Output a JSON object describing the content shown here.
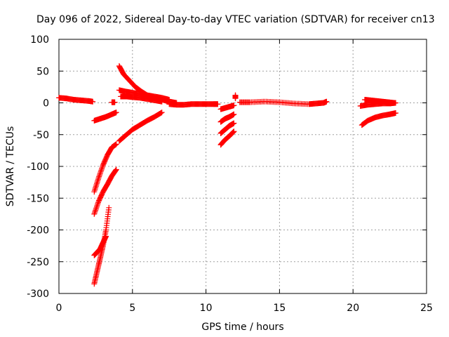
{
  "chart_data": {
    "type": "scatter",
    "title": "Day 096 of 2022, Sidereal Day-to-day VTEC variation (SDTVAR) for receiver cn13",
    "xlabel": "GPS time / hours",
    "ylabel": "SDTVAR / TECUs",
    "xlim": [
      0,
      25
    ],
    "ylim": [
      -300,
      100
    ],
    "xticks": [
      0,
      5,
      10,
      15,
      20,
      25
    ],
    "yticks": [
      100,
      50,
      0,
      -50,
      -100,
      -150,
      -200,
      -250,
      -300
    ],
    "xtick_labels": [
      "0",
      "5",
      "10",
      "15",
      "20",
      "25"
    ],
    "ytick_labels": [
      "100",
      "50",
      "0",
      "-50",
      "-100",
      "-150",
      "-200",
      "-250",
      "-300"
    ],
    "grid": true,
    "marker": "+",
    "series_color": "#ff0000",
    "series": [
      {
        "name": "arc-baseline-start",
        "x": [
          0.0,
          0.5,
          1.0,
          1.5,
          2.0,
          2.3
        ],
        "y": [
          8,
          7,
          5,
          4,
          3,
          2
        ]
      },
      {
        "name": "arc-short-blip",
        "x": [
          3.6,
          3.8
        ],
        "y": [
          1,
          1
        ]
      },
      {
        "name": "arc-neg25",
        "x": [
          2.4,
          2.8,
          3.2,
          3.6,
          3.9
        ],
        "y": [
          -28,
          -25,
          -22,
          -18,
          -15
        ]
      },
      {
        "name": "arc-neg140",
        "x": [
          2.4,
          2.7,
          3.0,
          3.3,
          3.6,
          3.9
        ],
        "y": [
          -140,
          -118,
          -98,
          -82,
          -70,
          -65
        ]
      },
      {
        "name": "arc-neg175",
        "x": [
          2.4,
          2.7,
          3.0,
          3.3,
          3.6,
          3.9
        ],
        "y": [
          -175,
          -155,
          -140,
          -128,
          -115,
          -105
        ]
      },
      {
        "name": "arc-neg285",
        "x": [
          2.4,
          2.6,
          2.8,
          3.0,
          3.2,
          3.4
        ],
        "y": [
          -285,
          -265,
          -245,
          -225,
          -200,
          -165
        ]
      },
      {
        "name": "arc-neg240",
        "x": [
          2.4,
          2.6,
          2.8,
          3.0,
          3.2
        ],
        "y": [
          -240,
          -235,
          -230,
          -220,
          -210
        ]
      },
      {
        "name": "arc-decay-high",
        "x": [
          4.1,
          4.4,
          4.8,
          5.2,
          5.6,
          6.0,
          6.5,
          7.0,
          7.5,
          8.0
        ],
        "y": [
          58,
          45,
          35,
          25,
          18,
          12,
          8,
          5,
          2,
          0
        ]
      },
      {
        "name": "arc-decay-mid",
        "x": [
          4.1,
          4.5,
          5.0,
          5.5,
          6.0,
          6.5,
          7.0,
          7.5
        ],
        "y": [
          20,
          18,
          16,
          14,
          12,
          10,
          8,
          5
        ]
      },
      {
        "name": "arc-decay-low",
        "x": [
          4.2,
          4.6,
          5.0,
          5.5,
          6.0,
          6.5,
          7.0
        ],
        "y": [
          10,
          10,
          9,
          8,
          6,
          4,
          2
        ]
      },
      {
        "name": "arc-rise-neg60",
        "x": [
          4.1,
          4.5,
          5.0,
          5.5,
          6.0,
          6.5,
          7.0
        ],
        "y": [
          -60,
          -52,
          -42,
          -35,
          -28,
          -22,
          -15
        ]
      },
      {
        "name": "arc-baseline-mid",
        "x": [
          7.5,
          8.0,
          8.5,
          9.0,
          9.5,
          10.0,
          10.5,
          10.8
        ],
        "y": [
          -2,
          -3,
          -3,
          -2,
          -2,
          -2,
          -2,
          -2
        ]
      },
      {
        "name": "arc-11h-a",
        "x": [
          11.0,
          11.3,
          11.6,
          11.9
        ],
        "y": [
          -10,
          -8,
          -6,
          -4
        ]
      },
      {
        "name": "arc-11h-b",
        "x": [
          11.0,
          11.3,
          11.6,
          11.9
        ],
        "y": [
          -30,
          -25,
          -22,
          -18
        ]
      },
      {
        "name": "arc-11h-c",
        "x": [
          11.0,
          11.3,
          11.6,
          11.9
        ],
        "y": [
          -48,
          -42,
          -36,
          -32
        ]
      },
      {
        "name": "arc-11h-d",
        "x": [
          11.0,
          11.3,
          11.6,
          11.9
        ],
        "y": [
          -66,
          -58,
          -52,
          -45
        ]
      },
      {
        "name": "arc-11h-outlier",
        "x": [
          12.0,
          12.0
        ],
        "y": [
          12,
          7
        ]
      },
      {
        "name": "arc-baseline-late",
        "x": [
          12.3,
          13.0,
          14.0,
          15.0,
          16.0,
          17.0,
          17.5,
          18.0,
          18.2
        ],
        "y": [
          1,
          1,
          2,
          1,
          -1,
          -2,
          -1,
          0,
          2
        ]
      },
      {
        "name": "arc-21h-top",
        "x": [
          20.8,
          21.2,
          21.6,
          22.0,
          22.4,
          22.8
        ],
        "y": [
          5,
          4,
          3,
          2,
          1,
          0
        ]
      },
      {
        "name": "arc-21h-mid",
        "x": [
          20.5,
          21.0,
          21.5,
          22.0,
          22.5,
          22.9
        ],
        "y": [
          -5,
          -3,
          -2,
          -1,
          -1,
          0
        ]
      },
      {
        "name": "arc-21h-low",
        "x": [
          20.6,
          21.0,
          21.5,
          22.0,
          22.5,
          22.9
        ],
        "y": [
          -35,
          -28,
          -23,
          -20,
          -18,
          -16
        ]
      }
    ]
  }
}
